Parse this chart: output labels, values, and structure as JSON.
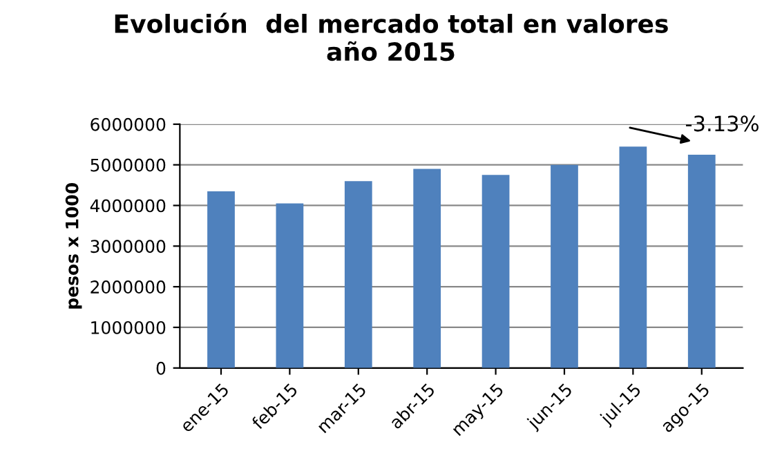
{
  "chart_data": {
    "type": "bar",
    "title": "Evolución  del mercado total en valores\naño 2015",
    "ylabel": "pesos x 1000",
    "categories": [
      "ene-15",
      "feb-15",
      "mar-15",
      "abr-15",
      "may-15",
      "jun-15",
      "jul-15",
      "ago-15"
    ],
    "values": [
      4350000,
      4050000,
      4600000,
      4900000,
      4750000,
      5000000,
      5450000,
      5250000
    ],
    "color": "#4f81bd",
    "ylim": [
      0,
      6000000
    ],
    "yticks": [
      0,
      1000000,
      2000000,
      3000000,
      4000000,
      5000000,
      6000000
    ],
    "grid": "y",
    "legend": false,
    "annotations": [
      {
        "text": "-3.13%",
        "x": "ago-15",
        "y": 5250000
      }
    ]
  }
}
